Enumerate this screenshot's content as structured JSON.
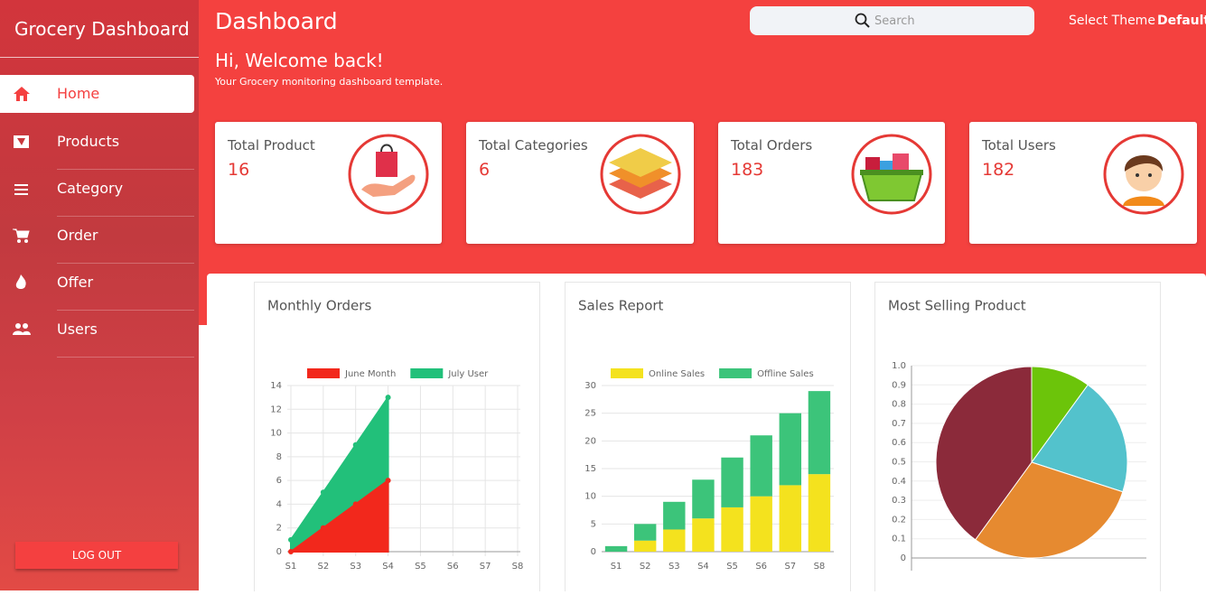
{
  "sidebar": {
    "title": "Grocery Dashboard",
    "menu": [
      "Home",
      "Products",
      "Category",
      "Order",
      "Offer",
      "Users"
    ],
    "logout": "LOG OUT"
  },
  "header": {
    "title": "Dashboard",
    "search_placeholder": "Search",
    "theme_label": "Select Theme",
    "theme_value": "Default",
    "greeting": "Hi, Welcome back!",
    "subtitle": "Your Grocery monitoring dashboard template."
  },
  "stats": [
    {
      "label": "Total Product",
      "value": 16
    },
    {
      "label": "Total Categories",
      "value": 6
    },
    {
      "label": "Total Orders",
      "value": 183
    },
    {
      "label": "Total Users",
      "value": 182
    }
  ],
  "chart_data": [
    {
      "type": "line",
      "title": "Monthly Orders",
      "categories": [
        "S1",
        "S2",
        "S3",
        "S4",
        "S5",
        "S6",
        "S7",
        "S8"
      ],
      "series": [
        {
          "name": "June Month",
          "color": "#f2281c",
          "values": [
            0,
            2,
            4,
            6,
            null,
            null,
            null,
            null
          ]
        },
        {
          "name": "July User",
          "color": "#22c07a",
          "values": [
            1,
            5,
            9,
            13,
            null,
            null,
            null,
            null
          ]
        }
      ],
      "ylim": [
        0,
        14
      ],
      "yticks": [
        0,
        2,
        4,
        6,
        8,
        10,
        12,
        14
      ],
      "grid": true,
      "fill": true
    },
    {
      "type": "stacked-bar",
      "title": "Sales Report",
      "categories": [
        "S1",
        "S2",
        "S3",
        "S4",
        "S5",
        "S6",
        "S7",
        "S8"
      ],
      "series": [
        {
          "name": "Online Sales",
          "color": "#f4e21e",
          "values": [
            0,
            2,
            4,
            6,
            8,
            10,
            12,
            14
          ]
        },
        {
          "name": "Offline Sales",
          "color": "#3cc47a",
          "values": [
            1,
            3,
            5,
            7,
            9,
            11,
            13,
            15
          ]
        }
      ],
      "ylim": [
        0,
        30
      ],
      "yticks": [
        0,
        5,
        10,
        15,
        20,
        25,
        30
      ],
      "grid": true
    },
    {
      "type": "pie",
      "title": "Most Selling Product",
      "values": [
        10,
        20,
        30,
        40
      ],
      "colors": [
        "#6cc40a",
        "#53c2cc",
        "#e68a30",
        "#8b2a3a"
      ],
      "ylim": [
        0,
        1
      ],
      "yticks": [
        0,
        0.1,
        0.2,
        0.3,
        0.4,
        0.5,
        0.6,
        0.7,
        0.8,
        0.9,
        {
          "value": 1,
          "label": "1.0"
        }
      ],
      "grid": true
    }
  ]
}
